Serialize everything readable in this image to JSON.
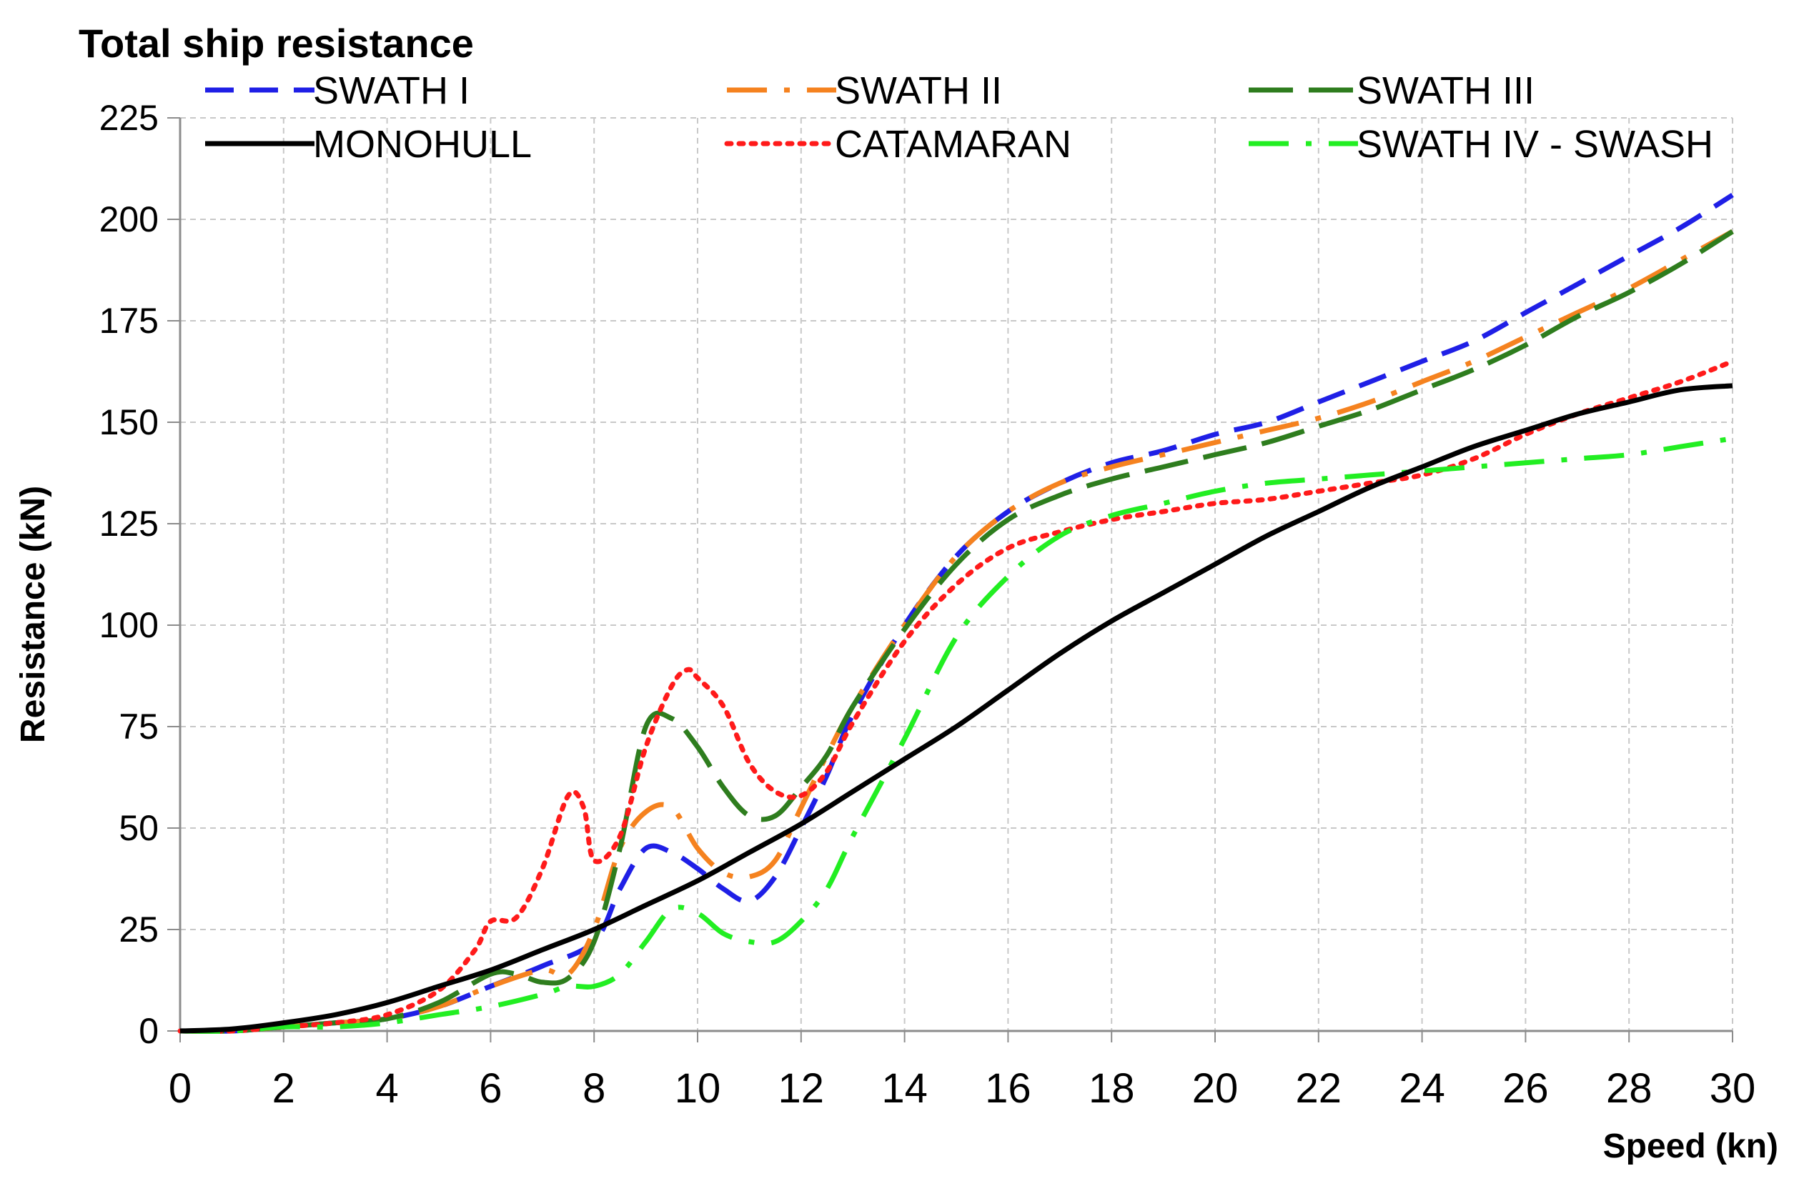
{
  "chart_data": {
    "type": "line",
    "title": "Total ship resistance",
    "xlabel": "Speed (kn)",
    "ylabel": "Resistance  (kN)",
    "xlim": [
      0,
      30
    ],
    "ylim": [
      0,
      225
    ],
    "x_ticks": [
      0,
      2,
      4,
      6,
      8,
      10,
      12,
      14,
      16,
      18,
      20,
      22,
      24,
      26,
      28,
      30
    ],
    "y_ticks": [
      0,
      25,
      50,
      75,
      100,
      125,
      150,
      175,
      200,
      225
    ],
    "grid": true,
    "legend_position": "top",
    "series": [
      {
        "name": "SWATH I",
        "color": "#1f1fe6",
        "dash": "dashed",
        "points": [
          [
            0,
            0
          ],
          [
            1,
            0
          ],
          [
            2,
            1
          ],
          [
            3,
            2
          ],
          [
            4,
            3
          ],
          [
            5,
            6
          ],
          [
            6,
            11
          ],
          [
            7,
            16
          ],
          [
            8,
            22
          ],
          [
            8.5,
            35
          ],
          [
            9,
            45
          ],
          [
            9.5,
            44
          ],
          [
            10,
            40
          ],
          [
            10.5,
            35
          ],
          [
            11,
            32
          ],
          [
            11.5,
            38
          ],
          [
            12,
            50
          ],
          [
            12.5,
            63
          ],
          [
            13,
            78
          ],
          [
            14,
            100
          ],
          [
            15,
            117
          ],
          [
            16,
            128
          ],
          [
            17,
            135
          ],
          [
            18,
            140
          ],
          [
            19,
            143
          ],
          [
            20,
            147
          ],
          [
            21,
            150
          ],
          [
            22,
            155
          ],
          [
            23,
            160
          ],
          [
            24,
            165
          ],
          [
            25,
            170
          ],
          [
            26,
            177
          ],
          [
            27,
            184
          ],
          [
            28,
            191
          ],
          [
            29,
            198
          ],
          [
            30,
            206
          ]
        ]
      },
      {
        "name": "SWATH II",
        "color": "#f5821f",
        "dash": "dashdot",
        "points": [
          [
            0,
            0
          ],
          [
            1,
            0
          ],
          [
            2,
            1
          ],
          [
            3,
            2
          ],
          [
            4,
            3
          ],
          [
            5,
            6
          ],
          [
            6,
            11
          ],
          [
            7,
            15
          ],
          [
            7.5,
            14
          ],
          [
            8,
            25
          ],
          [
            8.5,
            45
          ],
          [
            9,
            54
          ],
          [
            9.5,
            55
          ],
          [
            10,
            45
          ],
          [
            10.5,
            39
          ],
          [
            11,
            38
          ],
          [
            11.5,
            42
          ],
          [
            12,
            55
          ],
          [
            12.5,
            68
          ],
          [
            13,
            80
          ],
          [
            14,
            100
          ],
          [
            15,
            117
          ],
          [
            16,
            128
          ],
          [
            17,
            135
          ],
          [
            18,
            139
          ],
          [
            19,
            142
          ],
          [
            20,
            145
          ],
          [
            21,
            148
          ],
          [
            22,
            151
          ],
          [
            23,
            155
          ],
          [
            24,
            160
          ],
          [
            25,
            165
          ],
          [
            26,
            171
          ],
          [
            27,
            177
          ],
          [
            28,
            183
          ],
          [
            29,
            190
          ],
          [
            30,
            197
          ]
        ]
      },
      {
        "name": "SWATH III",
        "color": "#2e7d1e",
        "dash": "longdash",
        "points": [
          [
            0,
            0
          ],
          [
            1,
            0
          ],
          [
            2,
            1
          ],
          [
            3,
            2
          ],
          [
            4,
            3
          ],
          [
            5,
            7
          ],
          [
            6,
            14
          ],
          [
            6.5,
            14
          ],
          [
            7,
            12
          ],
          [
            7.5,
            13
          ],
          [
            8,
            22
          ],
          [
            8.5,
            45
          ],
          [
            9,
            75
          ],
          [
            9.5,
            77
          ],
          [
            10,
            70
          ],
          [
            10.5,
            60
          ],
          [
            11,
            53
          ],
          [
            11.5,
            53
          ],
          [
            12,
            60
          ],
          [
            12.5,
            68
          ],
          [
            13,
            80
          ],
          [
            14,
            99
          ],
          [
            15,
            115
          ],
          [
            16,
            126
          ],
          [
            17,
            132
          ],
          [
            18,
            136
          ],
          [
            19,
            139
          ],
          [
            20,
            142
          ],
          [
            21,
            145
          ],
          [
            22,
            149
          ],
          [
            23,
            153
          ],
          [
            24,
            158
          ],
          [
            25,
            163
          ],
          [
            26,
            169
          ],
          [
            27,
            176
          ],
          [
            28,
            182
          ],
          [
            29,
            189
          ],
          [
            30,
            197
          ]
        ]
      },
      {
        "name": "MONOHULL",
        "color": "#000000",
        "dash": "solid",
        "points": [
          [
            0,
            0
          ],
          [
            1,
            0.5
          ],
          [
            2,
            2
          ],
          [
            3,
            4
          ],
          [
            4,
            7
          ],
          [
            5,
            11
          ],
          [
            6,
            15
          ],
          [
            7,
            20
          ],
          [
            8,
            25
          ],
          [
            9,
            31
          ],
          [
            10,
            37
          ],
          [
            11,
            44
          ],
          [
            12,
            51
          ],
          [
            13,
            59
          ],
          [
            14,
            67
          ],
          [
            15,
            75
          ],
          [
            16,
            84
          ],
          [
            17,
            93
          ],
          [
            18,
            101
          ],
          [
            19,
            108
          ],
          [
            20,
            115
          ],
          [
            21,
            122
          ],
          [
            22,
            128
          ],
          [
            23,
            134
          ],
          [
            24,
            139
          ],
          [
            25,
            144
          ],
          [
            26,
            148
          ],
          [
            27,
            152
          ],
          [
            28,
            155
          ],
          [
            29,
            158
          ],
          [
            30,
            159
          ]
        ]
      },
      {
        "name": "CATAMARAN",
        "color": "#ff1a1a",
        "dash": "dotted",
        "points": [
          [
            0,
            0
          ],
          [
            1,
            0
          ],
          [
            2,
            1
          ],
          [
            3,
            2
          ],
          [
            4,
            4
          ],
          [
            5,
            10
          ],
          [
            5.7,
            20
          ],
          [
            6,
            27
          ],
          [
            6.5,
            28
          ],
          [
            7,
            40
          ],
          [
            7.5,
            58
          ],
          [
            7.8,
            55
          ],
          [
            8,
            42
          ],
          [
            8.5,
            48
          ],
          [
            9,
            70
          ],
          [
            9.5,
            85
          ],
          [
            9.8,
            89
          ],
          [
            10,
            87
          ],
          [
            10.5,
            80
          ],
          [
            11,
            66
          ],
          [
            11.5,
            59
          ],
          [
            12,
            58
          ],
          [
            12.5,
            64
          ],
          [
            13,
            76
          ],
          [
            14,
            96
          ],
          [
            15,
            110
          ],
          [
            16,
            119
          ],
          [
            17,
            123
          ],
          [
            18,
            126
          ],
          [
            19,
            128
          ],
          [
            20,
            130
          ],
          [
            21,
            131
          ],
          [
            22,
            133
          ],
          [
            23,
            135
          ],
          [
            24,
            137
          ],
          [
            25,
            141
          ],
          [
            26,
            147
          ],
          [
            27,
            152
          ],
          [
            28,
            156
          ],
          [
            29,
            160
          ],
          [
            30,
            165
          ]
        ]
      },
      {
        "name": "SWATH IV - SWASH",
        "color": "#22ee22",
        "dash": "dashdot",
        "points": [
          [
            0,
            0
          ],
          [
            1,
            0
          ],
          [
            2,
            1
          ],
          [
            3,
            1
          ],
          [
            4,
            2
          ],
          [
            5,
            4
          ],
          [
            6,
            6
          ],
          [
            7,
            9
          ],
          [
            7.5,
            11
          ],
          [
            8,
            11
          ],
          [
            8.5,
            14
          ],
          [
            9,
            22
          ],
          [
            9.5,
            30
          ],
          [
            10,
            29
          ],
          [
            10.5,
            24
          ],
          [
            11,
            22
          ],
          [
            11.5,
            22
          ],
          [
            12,
            27
          ],
          [
            12.5,
            35
          ],
          [
            13,
            48
          ],
          [
            14,
            72
          ],
          [
            15,
            97
          ],
          [
            16,
            112
          ],
          [
            17,
            122
          ],
          [
            18,
            127
          ],
          [
            19,
            130
          ],
          [
            20,
            133
          ],
          [
            21,
            135
          ],
          [
            22,
            136
          ],
          [
            23,
            137
          ],
          [
            24,
            138
          ],
          [
            25,
            139
          ],
          [
            26,
            140
          ],
          [
            27,
            141
          ],
          [
            28,
            142
          ],
          [
            29,
            144
          ],
          [
            30,
            146
          ]
        ]
      }
    ]
  }
}
